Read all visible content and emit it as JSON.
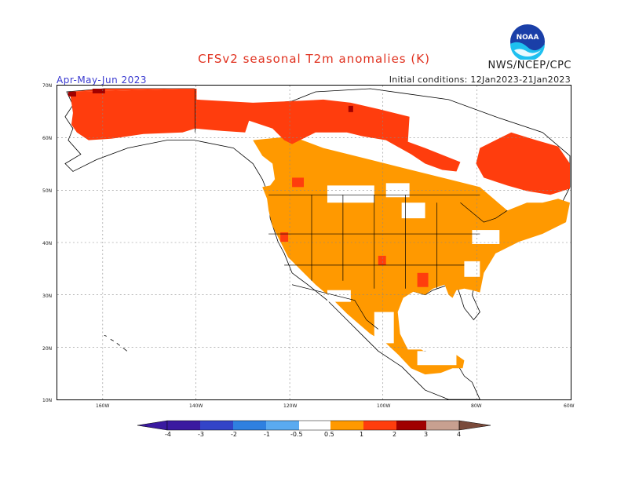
{
  "title": "CFSv2 seasonal T2m anomalies (K)",
  "agency": "NWS/NCEP/CPC",
  "logo_text": "NOAA",
  "season": "Apr-May-Jun 2023",
  "initial_conditions": "Initial conditions: 12Jan2023-21Jan2023",
  "lat_labels": [
    "70N",
    "60N",
    "50N",
    "40N",
    "30N",
    "20N",
    "10N"
  ],
  "lon_labels": [
    "160W",
    "140W",
    "120W",
    "100W",
    "80W",
    "60W"
  ],
  "colorbar_labels": [
    "-4",
    "-3",
    "-2",
    "-1",
    "-0.5",
    "0.5",
    "1",
    "2",
    "3",
    "4"
  ],
  "colors": {
    "anom_0_5_1": "#ff9900",
    "anom_1_2": "#ff3d0d",
    "anom_2_3": "#a00000",
    "anom_3_4": "#c8a090",
    "anom_4plus": "#7a4a3a",
    "neg_4": "#3a1aa0",
    "neg_3": "#3344c8",
    "neg_2": "#2f80e0",
    "neg_1": "#5aaaf0",
    "neg_0_5": "#99ccff",
    "title": "#e0301e",
    "season": "#3a3ad0"
  }
}
